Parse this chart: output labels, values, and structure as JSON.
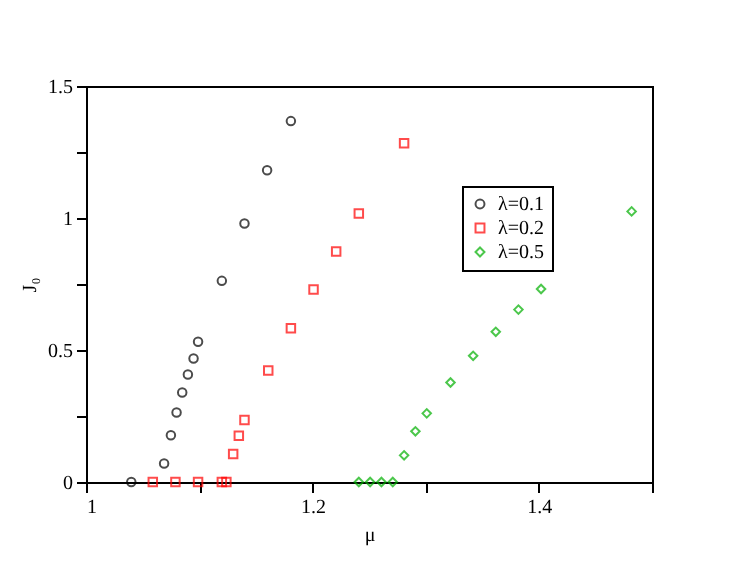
{
  "chart_data": {
    "type": "scatter",
    "xlabel": "μ",
    "ylabel": "J₀",
    "xlim": [
      1,
      1.5
    ],
    "ylim": [
      0,
      1.5
    ],
    "xticks": [
      1,
      {
        "value": 1.1,
        "label": null
      },
      1.2,
      {
        "value": 1.3,
        "label": null
      },
      1.4,
      {
        "value": 1.5,
        "label": null
      }
    ],
    "yticks": [
      0,
      {
        "value": 0.25,
        "label": null
      },
      0.5,
      {
        "value": 0.75,
        "label": null
      },
      1,
      {
        "value": 1.25,
        "label": null
      },
      1.5
    ],
    "grid": false,
    "legend": "top right",
    "series": [
      {
        "name": "λ=0.1",
        "color": "#000000",
        "marker": "circle",
        "x": [
          1.04,
          1.069,
          1.075,
          1.08,
          1.085,
          1.09,
          1.095,
          1.099,
          1.12,
          1.14,
          1.16,
          1.181
        ],
        "values": [
          0,
          0.07,
          0.177,
          0.263,
          0.339,
          0.407,
          0.468,
          0.531,
          0.762,
          0.979,
          1.181,
          1.367
        ]
      },
      {
        "name": "λ=0.2",
        "color": "#ff0000",
        "marker": "square",
        "x": [
          1.059,
          1.079,
          1.099,
          1.12,
          1.124,
          1.13,
          1.135,
          1.14,
          1.161,
          1.181,
          1.201,
          1.221,
          1.241,
          1.281
        ],
        "values": [
          0,
          0,
          0,
          0,
          0,
          0.106,
          0.175,
          0.235,
          0.422,
          0.582,
          0.729,
          0.873,
          1.017,
          1.283
        ]
      },
      {
        "name": "λ=0.5",
        "color": "#00b000",
        "marker": "diamond",
        "x": [
          1.241,
          1.251,
          1.261,
          1.271,
          1.281,
          1.291,
          1.301,
          1.322,
          1.342,
          1.362,
          1.382,
          1.402,
          1.482
        ],
        "values": [
          0,
          0,
          0,
          0,
          0.101,
          0.192,
          0.26,
          0.377,
          0.478,
          0.569,
          0.653,
          0.731,
          1.025
        ]
      }
    ]
  }
}
